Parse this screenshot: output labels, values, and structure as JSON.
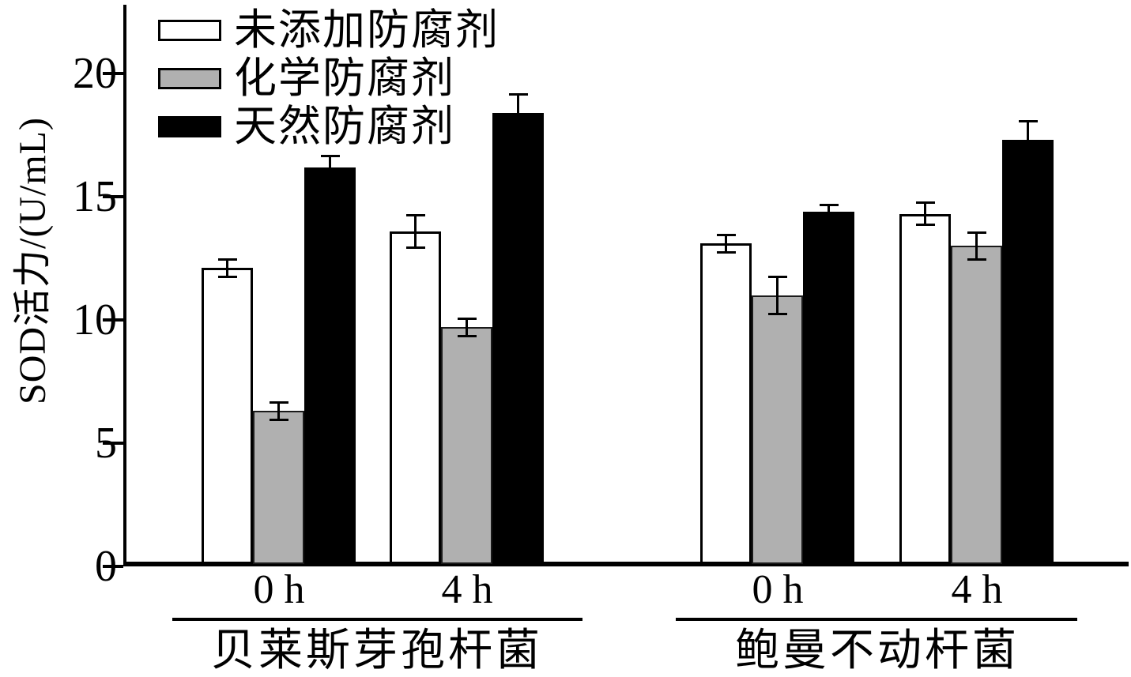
{
  "chart_data": {
    "type": "bar",
    "title": "",
    "ylabel": "SOD活力/(U/mL)",
    "xlabel": "",
    "ylim": [
      0,
      20
    ],
    "yticks": [
      0,
      5,
      10,
      15,
      20
    ],
    "grid": false,
    "legend_position": "top-left",
    "error_bars": true,
    "groups": [
      {
        "label": "贝莱斯芽孢杆菌",
        "categories": [
          "0 h",
          "4 h"
        ]
      },
      {
        "label": "鲍曼不动杆菌",
        "categories": [
          "0 h",
          "4 h"
        ]
      }
    ],
    "category_order": [
      "贝莱斯芽孢杆菌 0 h",
      "贝莱斯芽孢杆菌 4 h",
      "鲍曼不动杆菌 0 h",
      "鲍曼不动杆菌 4 h"
    ],
    "series": [
      {
        "name": "未添加防腐剂",
        "fill": "#ffffff",
        "values": [
          12.1,
          13.6,
          13.1,
          14.3
        ],
        "errors": [
          0.4,
          0.7,
          0.4,
          0.5
        ]
      },
      {
        "name": "化学防腐剂",
        "fill": "#b0b0b0",
        "values": [
          6.3,
          9.7,
          11.0,
          13.0
        ],
        "errors": [
          0.4,
          0.4,
          0.8,
          0.6
        ]
      },
      {
        "name": "天然防腐剂",
        "fill": "#000000",
        "values": [
          16.2,
          18.4,
          14.4,
          17.3
        ],
        "errors": [
          0.5,
          0.8,
          0.3,
          0.8
        ]
      }
    ],
    "colors": {
      "bar_outline": "#000000",
      "axis": "#000000",
      "background": "#ffffff"
    }
  }
}
